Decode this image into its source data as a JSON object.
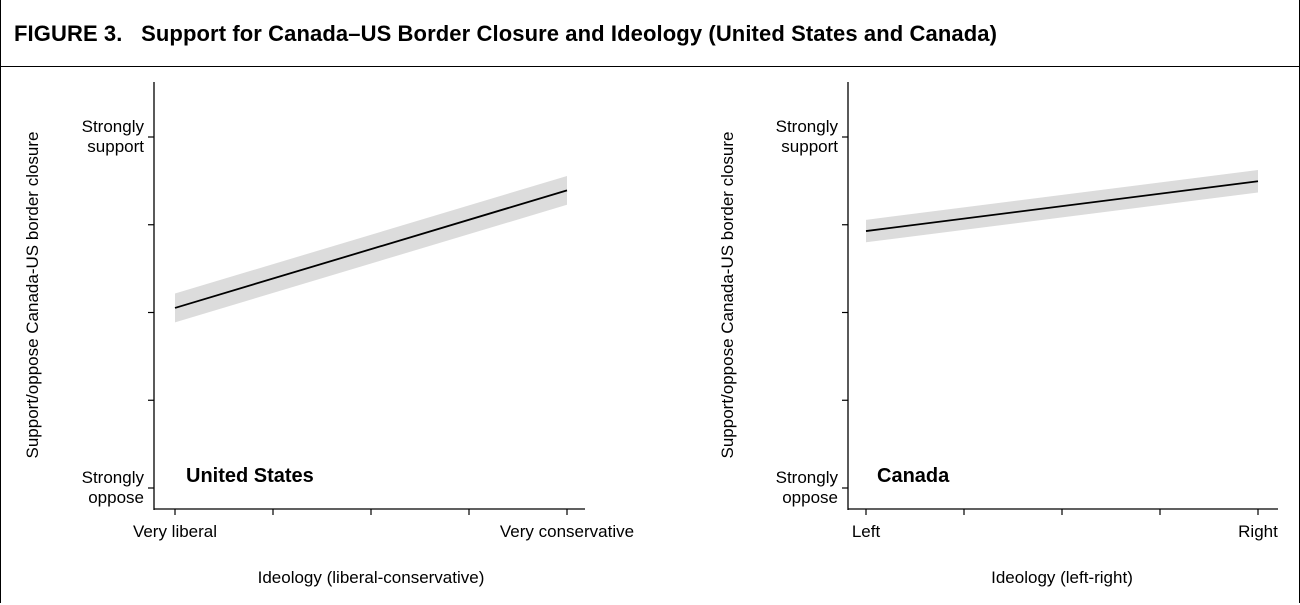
{
  "figure": {
    "title": "FIGURE 3.   Support for Canada–US Border Closure and Ideology (United States and Canada)"
  },
  "chart_data": [
    {
      "type": "line",
      "panel_label": "United States",
      "xlabel": "Ideology (liberal-conservative)",
      "ylabel": "Support/oppose Canada-US border closure",
      "x_tick_labels": [
        "Very liberal",
        "",
        "",
        "",
        "Very conservative"
      ],
      "y_tick_labels": [
        "Strongly\noppose",
        "",
        "",
        "",
        "Strongly\nsupport"
      ],
      "xlim": [
        0,
        1
      ],
      "ylim": [
        0,
        1
      ],
      "grid": false,
      "series": [
        {
          "x": [
            0,
            1
          ],
          "y": [
            0.513,
            0.848
          ],
          "ci_lower": [
            0.472,
            0.807
          ],
          "ci_upper": [
            0.554,
            0.889
          ]
        }
      ]
    },
    {
      "type": "line",
      "panel_label": "Canada",
      "xlabel": "Ideology (left-right)",
      "ylabel": "Support/oppose Canada-US border closure",
      "x_tick_labels": [
        "Left",
        "",
        "",
        "",
        "Right"
      ],
      "y_tick_labels": [
        "Strongly\noppose",
        "",
        "",
        "",
        "Strongly\nsupport"
      ],
      "xlim": [
        0,
        1
      ],
      "ylim": [
        0,
        1
      ],
      "grid": false,
      "series": [
        {
          "x": [
            0,
            1
          ],
          "y": [
            0.732,
            0.874
          ],
          "ci_lower": [
            0.7,
            0.842
          ],
          "ci_upper": [
            0.764,
            0.906
          ]
        }
      ]
    }
  ]
}
